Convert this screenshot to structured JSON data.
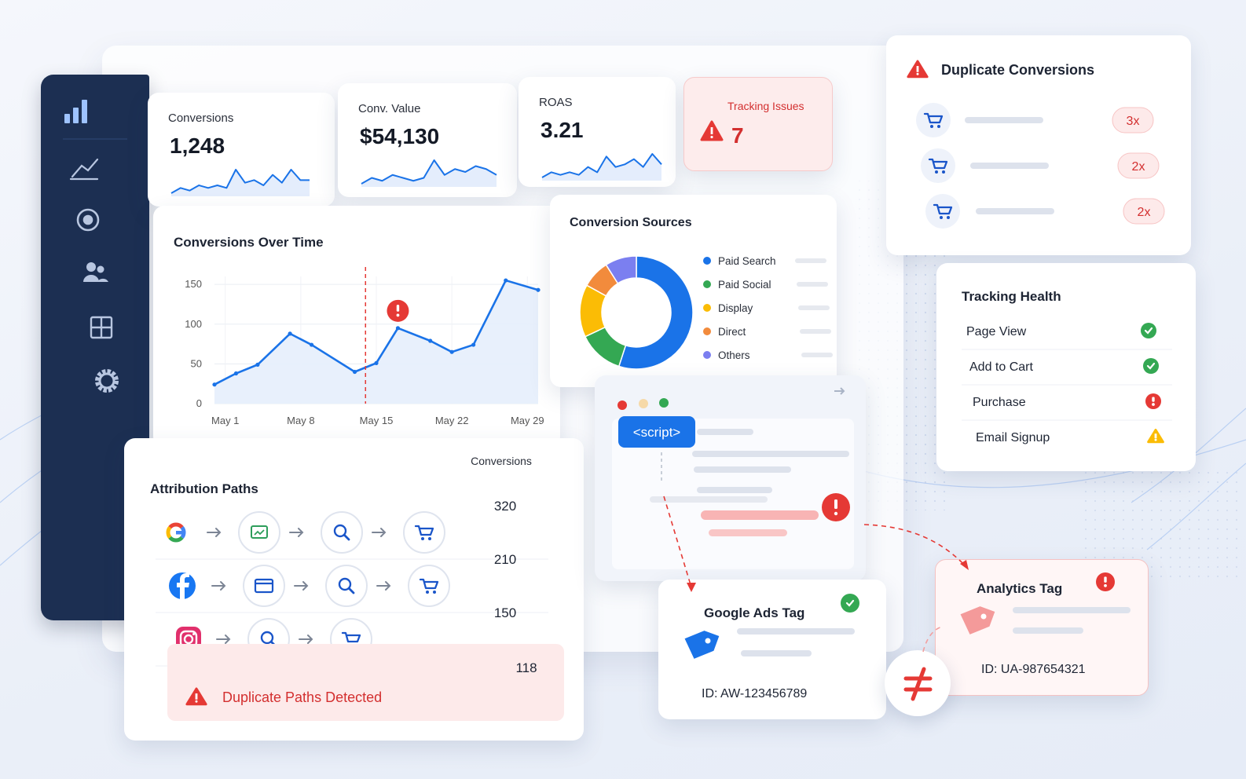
{
  "kpis": [
    {
      "label": "Conversions",
      "value": "1,248",
      "trend": [
        3,
        5,
        4,
        6,
        5,
        6,
        5,
        12,
        7,
        8,
        6,
        10,
        7,
        12,
        8,
        8
      ]
    },
    {
      "label": "Conv. Value",
      "value": "$54,130",
      "trend": [
        4,
        6,
        5,
        7,
        6,
        5,
        6,
        12,
        7,
        9,
        8,
        10,
        9,
        7
      ]
    },
    {
      "label": "ROAS",
      "value": "3.21",
      "trend": [
        4,
        6,
        5,
        6,
        5,
        8,
        6,
        12,
        8,
        9,
        11,
        8,
        13,
        9
      ]
    }
  ],
  "tracking_issues": {
    "label": "Tracking Issues",
    "count": 7
  },
  "chart_data": [
    {
      "type": "line",
      "title": "Conversions Over Time",
      "x": [
        0,
        2,
        4,
        7,
        9,
        13,
        15,
        17,
        20,
        22,
        24,
        27,
        30
      ],
      "xlim": [
        0,
        30
      ],
      "xticks": [
        {
          "value": 1,
          "label": "May 1"
        },
        {
          "value": 8,
          "label": "May 8"
        },
        {
          "value": 15,
          "label": "May 15"
        },
        {
          "value": 22,
          "label": "May 22"
        },
        {
          "value": 29,
          "label": "May 29"
        }
      ],
      "ylim": [
        0,
        160
      ],
      "yticks": [
        0,
        50,
        100,
        150
      ],
      "grid": true,
      "series": [
        {
          "color": "#1a73e8",
          "values": [
            24,
            38,
            49,
            88,
            74,
            40,
            51,
            95,
            79,
            65,
            74,
            155,
            143
          ]
        }
      ],
      "vline_x": 14,
      "alert": {
        "x": 17,
        "y": 95
      }
    },
    {
      "type": "pie",
      "donut": true,
      "title": "Conversion Sources",
      "legend": "right",
      "categories": [
        "Paid Search",
        "Paid Social",
        "Display",
        "Direct",
        "Others"
      ],
      "values": [
        55,
        13,
        15,
        8,
        9
      ],
      "colors": [
        "#1a73e8",
        "#34a853",
        "#fbbc05",
        "#f28b3c",
        "#7b7ff0"
      ]
    }
  ],
  "attribution": {
    "title": "Attribution Paths",
    "column": "Conversions",
    "rows": [
      {
        "conversions": 320
      },
      {
        "conversions": 210
      },
      {
        "conversions": 150
      }
    ],
    "duplicate": {
      "label": "Duplicate Paths Detected",
      "conversions": 118
    }
  },
  "script_tag": "<script>",
  "duplicates": {
    "title": "Duplicate Conversions",
    "rows": [
      {
        "count": "3x"
      },
      {
        "count": "2x"
      },
      {
        "count": "2x"
      }
    ]
  },
  "tracking_health": {
    "title": "Tracking Health",
    "items": [
      {
        "label": "Page View",
        "status": "ok"
      },
      {
        "label": "Add to Cart",
        "status": "ok"
      },
      {
        "label": "Purchase",
        "status": "error"
      },
      {
        "label": "Email Signup",
        "status": "warning"
      }
    ]
  },
  "tags": [
    {
      "title": "Google Ads Tag",
      "id": "ID: AW-123456789",
      "status": "ok"
    },
    {
      "title": "Analytics Tag",
      "id": "ID: UA-987654321",
      "status": "error"
    }
  ]
}
